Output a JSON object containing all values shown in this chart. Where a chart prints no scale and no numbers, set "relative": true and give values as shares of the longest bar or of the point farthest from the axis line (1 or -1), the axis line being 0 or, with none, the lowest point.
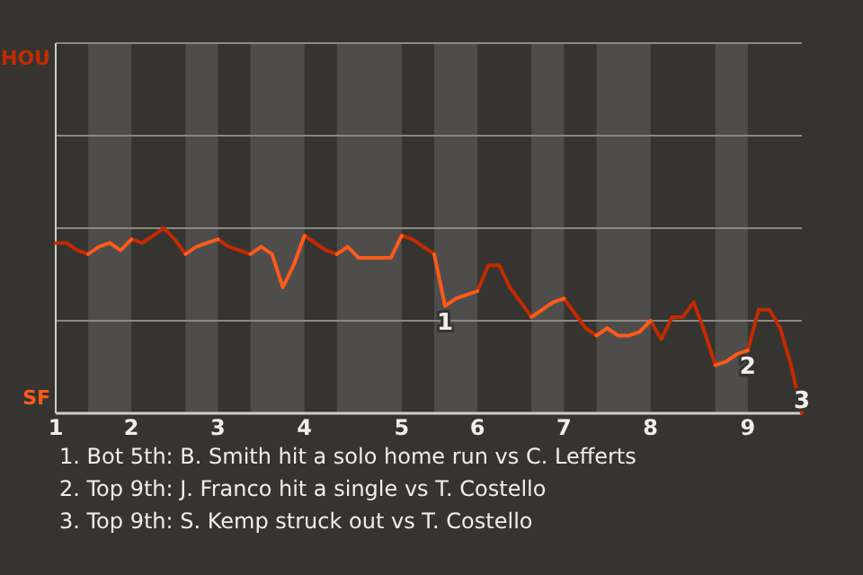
{
  "chart_data": {
    "type": "line",
    "relative": true,
    "categories": [
      "1",
      null,
      null,
      null,
      null,
      null,
      null,
      "2",
      null,
      null,
      null,
      null,
      null,
      null,
      null,
      "3",
      null,
      null,
      null,
      null,
      null,
      null,
      null,
      "4",
      null,
      null,
      null,
      null,
      null,
      null,
      null,
      null,
      "5",
      null,
      null,
      null,
      null,
      null,
      null,
      "6",
      null,
      null,
      null,
      null,
      null,
      null,
      null,
      "7",
      null,
      null,
      null,
      null,
      null,
      null,
      null,
      "8",
      null,
      null,
      null,
      null,
      null,
      null,
      null,
      null,
      "9",
      null,
      null,
      null,
      null,
      null
    ],
    "marker": "none",
    "line_style": "solid",
    "series": [
      {
        "color": "#c42a00",
        "values": [
          0.92,
          0.92,
          0.88,
          0.86,
          null,
          null,
          null,
          0.94,
          0.92,
          0.96,
          1,
          0.94,
          0.86,
          null,
          null,
          0.94,
          0.9,
          0.88,
          0.86,
          null,
          null,
          null,
          null,
          0.96,
          0.92,
          0.88,
          0.86,
          null,
          null,
          null,
          null,
          null,
          0.96,
          0.94,
          0.9,
          0.86,
          null,
          null,
          null,
          0.66,
          0.8,
          0.8,
          0.68,
          0.6,
          0.52,
          null,
          null,
          0.62,
          0.54,
          0.46,
          0.42,
          null,
          null,
          null,
          null,
          0.5,
          0.4,
          0.52,
          0.52,
          0.6,
          0.44,
          0.26,
          null,
          null,
          0.34,
          0.56,
          0.56,
          0.46,
          0.26,
          0
        ]
      },
      {
        "color": "#ff5a1a",
        "values": [
          null,
          null,
          null,
          0.86,
          0.9,
          0.92,
          0.88,
          0.94,
          null,
          null,
          null,
          null,
          0.86,
          0.9,
          0.92,
          0.94,
          null,
          null,
          0.86,
          0.9,
          0.86,
          0.68,
          0.8,
          0.96,
          null,
          null,
          0.86,
          0.9,
          0.84,
          0.84,
          0.84,
          0.84,
          0.96,
          null,
          null,
          0.86,
          0.58,
          0.62,
          0.64,
          0.66,
          null,
          null,
          null,
          null,
          0.52,
          0.56,
          0.6,
          0.62,
          null,
          null,
          0.42,
          0.46,
          0.42,
          0.42,
          0.44,
          0.5,
          null,
          null,
          null,
          null,
          null,
          0.26,
          0.28,
          0.32,
          0.34,
          null,
          null,
          null,
          null,
          null
        ]
      }
    ],
    "ref_lines": [
      {
        "axis": "y",
        "value": 0.5,
        "color": "#8a8884"
      },
      {
        "axis": "y",
        "value": 1,
        "color": "#8a8884"
      },
      {
        "axis": "y",
        "value": 1.5,
        "color": "#8a8884"
      },
      {
        "axis": "y",
        "value": 2,
        "color": "#8a8884"
      }
    ],
    "annotations": [
      "HOU",
      "SF",
      {
        "text": "1",
        "y": 0.58
      },
      {
        "text": "2",
        "y": 0.34
      },
      {
        "text": "3",
        "y": 0
      },
      "1. Bot 5th: B. Smith hit a solo home run vs C. Lefferts",
      "2. Top 9th: J. Franco hit a single vs T. Costello",
      "3. Top 9th: S. Kemp struck out vs T. Costello"
    ]
  }
}
